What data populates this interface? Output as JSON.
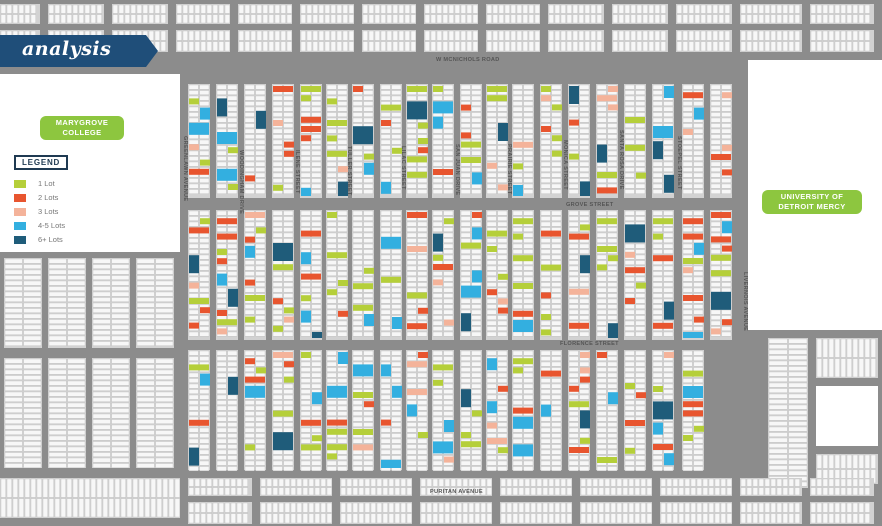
{
  "banner": {
    "title": "analysis"
  },
  "legend": {
    "title": "LEGEND",
    "items": [
      {
        "label": "1 Lot",
        "color": "#b5cf3a"
      },
      {
        "label": "2 Lots",
        "color": "#e8552f"
      },
      {
        "label": "3 Lots",
        "color": "#f4b39a"
      },
      {
        "label": "4-5 Lots",
        "color": "#33afe0"
      },
      {
        "label": "6+ Lots",
        "color": "#1f5c7a"
      }
    ]
  },
  "places": {
    "marygrove": "MARYGROVE COLLEGE",
    "udm": "UNIVERSITY OF DETROIT MERCY"
  },
  "streets": {
    "mcnichols": "W MCNICHOLS ROAD",
    "grove": "GROVE STREET",
    "florence": "FLORENCE STREET",
    "puritan": "PURITAN AVENUE",
    "greenlawn": "GREENLAWN AVENUE",
    "woodingham": "WOODINGHAM DRIVE",
    "ilene": "ILENE STREET",
    "tuller": "TULLER STREET",
    "lilac": "LILAC STREET",
    "sanjuan": "SAN JUAN DRIVE",
    "prairie": "PRAIRIE STREET",
    "monica": "MONICA STREET",
    "santarosa": "SANTA ROSA DRIVE",
    "stoepel": "STOEPEL STREET",
    "livernois": "LIVERNOIS AVENUE"
  },
  "colors": {
    "road": "#8c8c8c",
    "block": "#d2d2d2",
    "parcel": "#f7f7f7",
    "banner": "#1f4e79"
  }
}
